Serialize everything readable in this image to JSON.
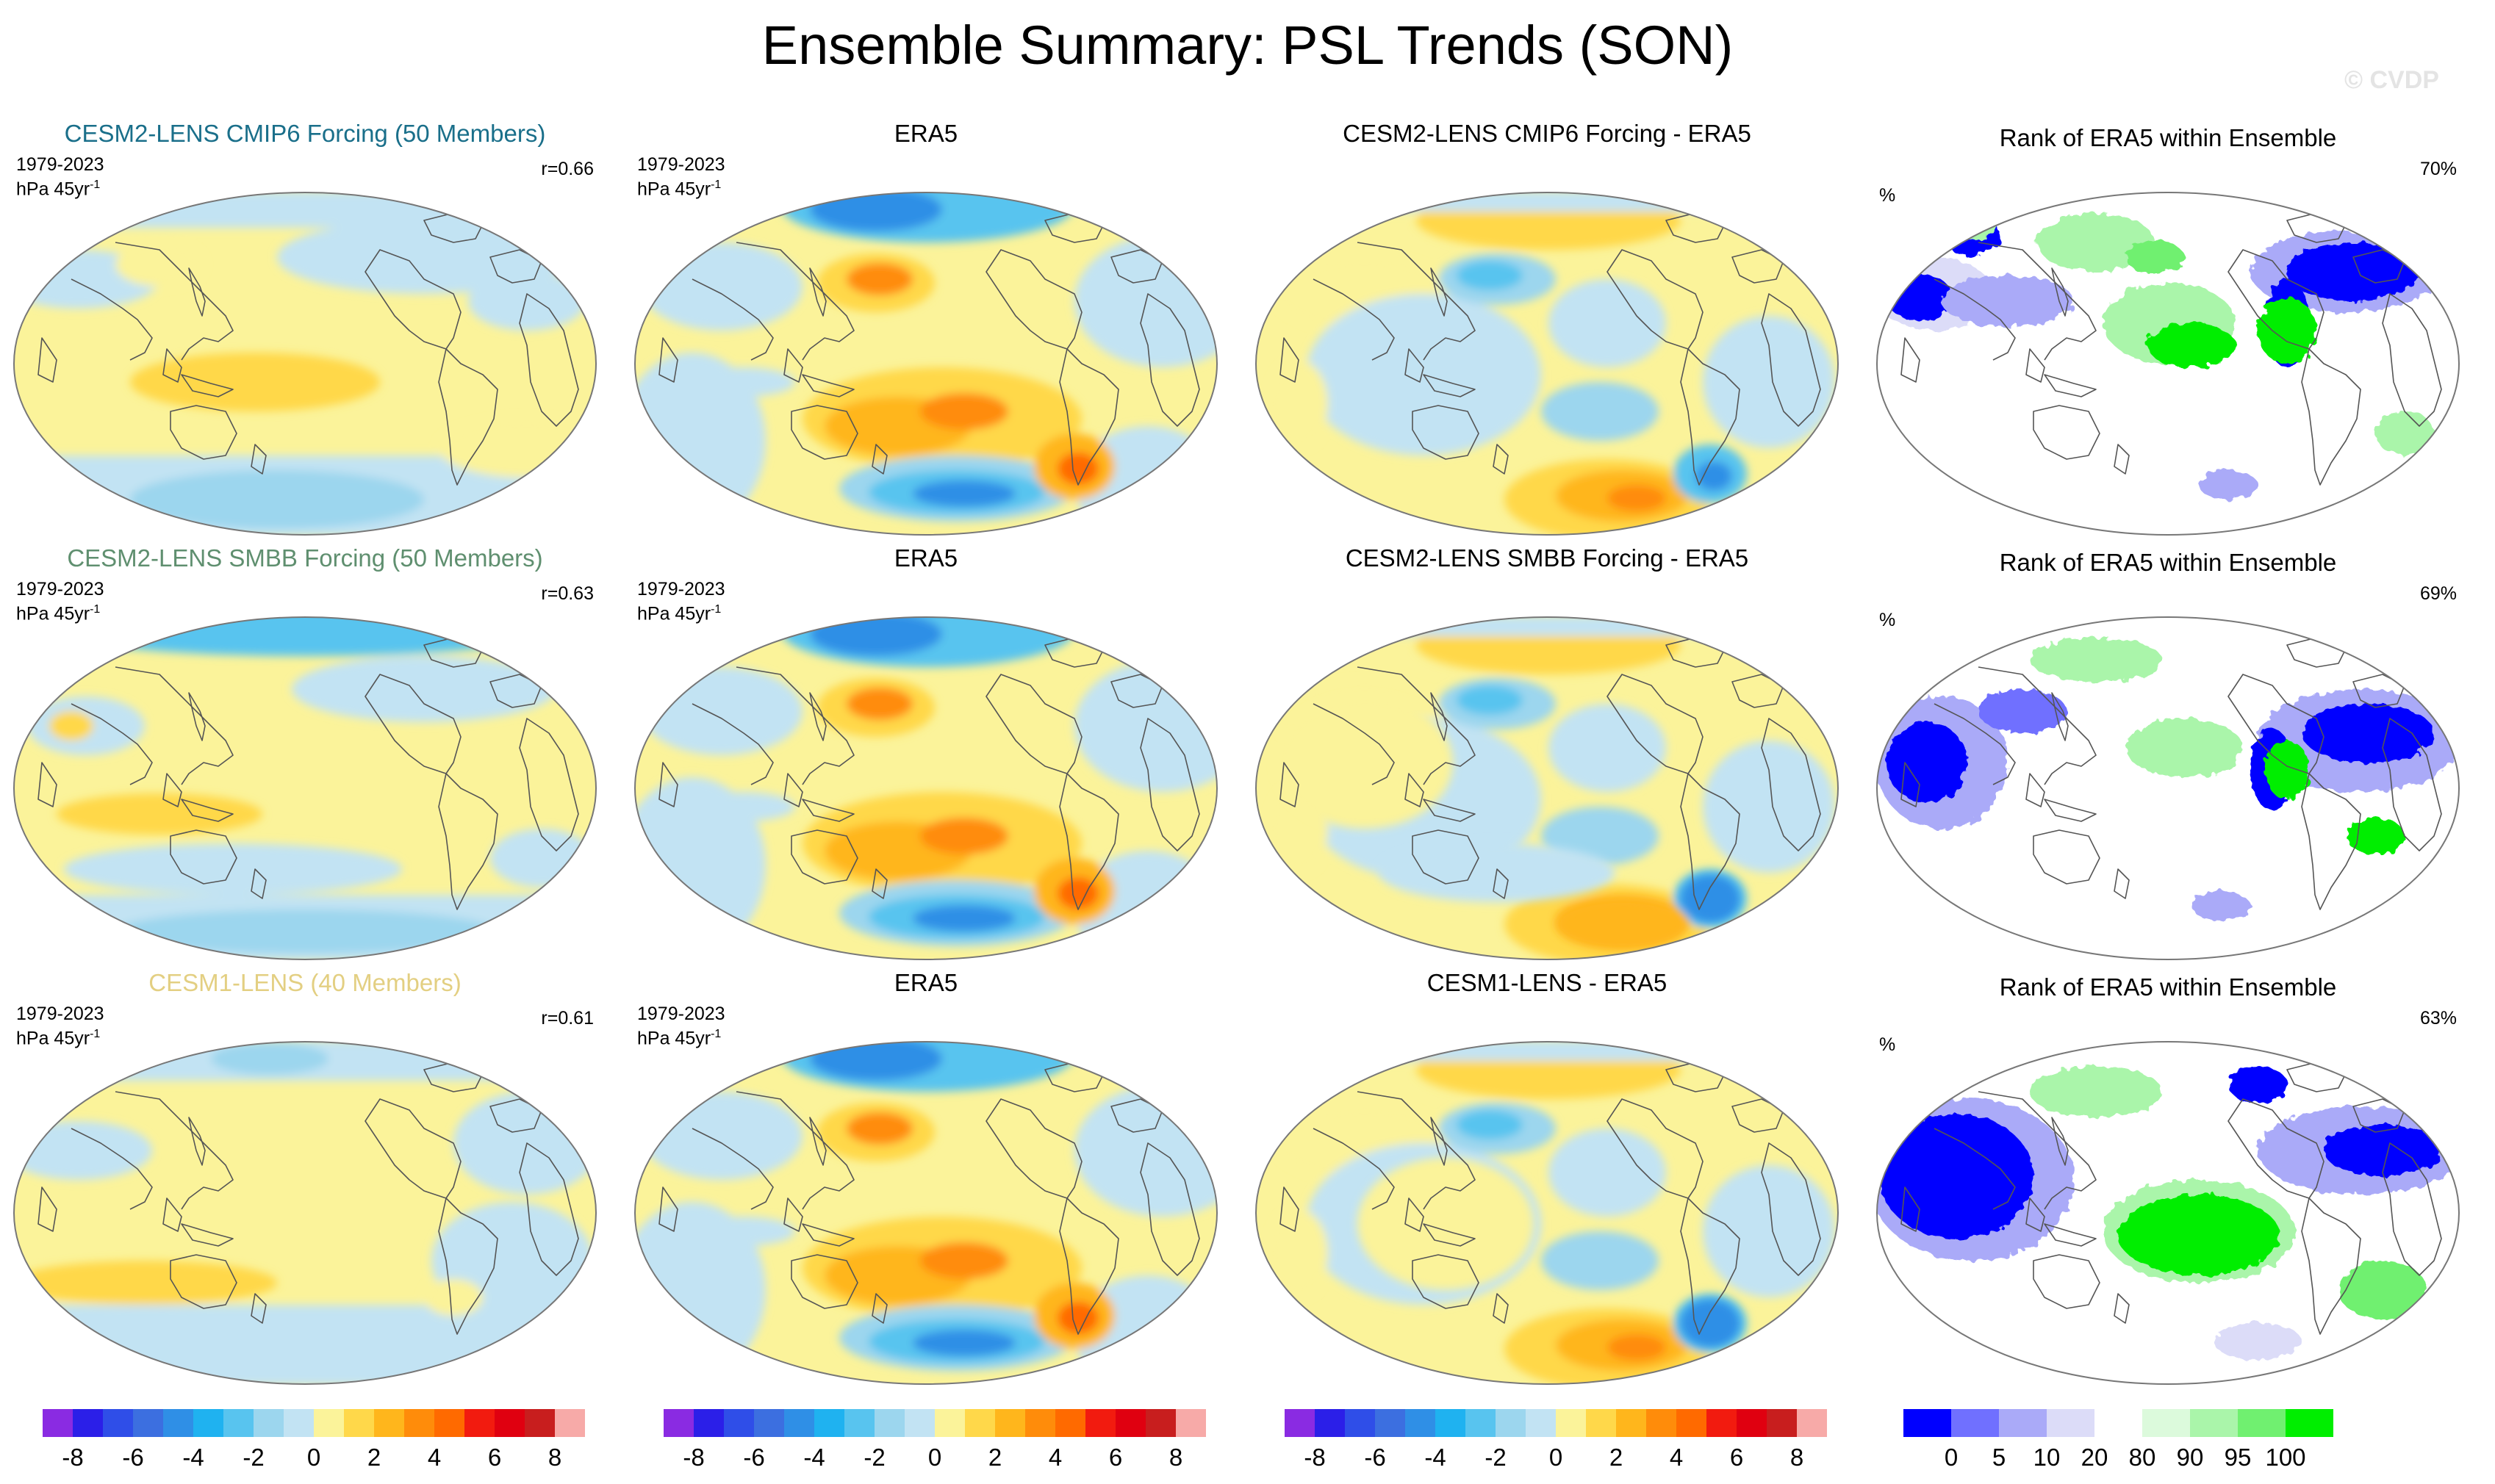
{
  "figure": {
    "title": "Ensemble Summary: PSL Trends (SON)",
    "copyright": "© CVDP"
  },
  "period": "1979-2023",
  "units_base": "hPa 45yr",
  "units_exp": "-1",
  "colors": {
    "title_cmip6": "#1a6f8a",
    "title_smbb": "#5f8f6f",
    "title_cesm1": "#e3cf82",
    "ocean_bg": "#ffffff"
  },
  "rows": [
    {
      "ensemble": {
        "title": "CESM2-LENS CMIP6 Forcing (50 Members)",
        "corr": "r=0.66"
      },
      "obs": {
        "title": "ERA5"
      },
      "diff": {
        "title": "CESM2-LENS CMIP6 Forcing - ERA5"
      },
      "rank": {
        "title": "Rank of ERA5 within Ensemble",
        "unit": "%",
        "value": "70%"
      }
    },
    {
      "ensemble": {
        "title": "CESM2-LENS SMBB Forcing (50 Members)",
        "corr": "r=0.63"
      },
      "obs": {
        "title": "ERA5"
      },
      "diff": {
        "title": "CESM2-LENS SMBB Forcing - ERA5"
      },
      "rank": {
        "title": "Rank of ERA5 within Ensemble",
        "unit": "%",
        "value": "69%"
      }
    },
    {
      "ensemble": {
        "title": "CESM1-LENS (40 Members)",
        "corr": "r=0.61"
      },
      "obs": {
        "title": "ERA5"
      },
      "diff": {
        "title": "CESM1-LENS - ERA5"
      },
      "rank": {
        "title": "Rank of ERA5 within Ensemble",
        "unit": "%",
        "value": "63%"
      }
    }
  ],
  "colorbar_trend": {
    "colors": [
      "#8a2be2",
      "#2b1fe8",
      "#2f4ee8",
      "#3c6fe0",
      "#2f8fe6",
      "#1fb2f0",
      "#58c4ef",
      "#9cd6ee",
      "#c2e3f3",
      "#fbf39a",
      "#ffd84a",
      "#ffb61c",
      "#ff8c0a",
      "#ff6a00",
      "#f21b0f",
      "#e00010",
      "#c81e1e",
      "#f7aaa8"
    ],
    "ticks": [
      "-8",
      "-6",
      "-4",
      "-2",
      "0",
      "2",
      "4",
      "6",
      "8"
    ]
  },
  "colorbar_rank": {
    "colors": [
      "#0000ff",
      "#7070ff",
      "#aaaaf8",
      "#dcdcf8",
      "#ffffff",
      "#dcfadc",
      "#aaf5aa",
      "#70f070",
      "#00ee00"
    ],
    "ticks": [
      "0",
      "5",
      "10",
      "20",
      "80",
      "90",
      "95",
      "100"
    ]
  }
}
